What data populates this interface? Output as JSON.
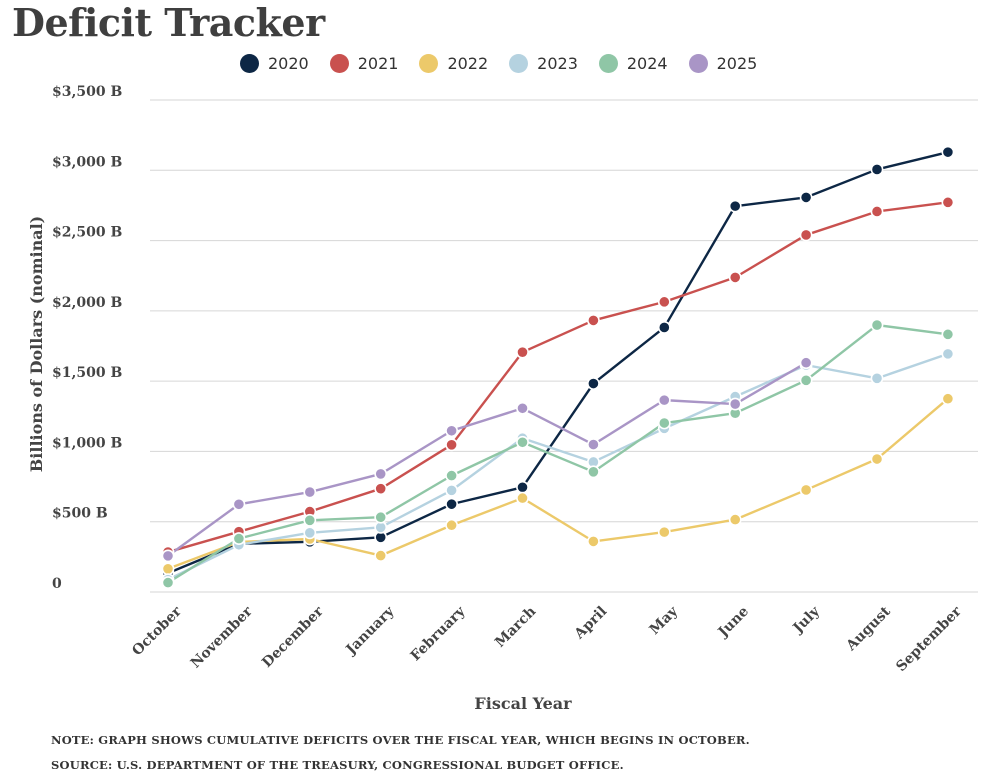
{
  "chart_data": {
    "type": "line",
    "title": "Deficit Tracker",
    "xlabel": "Fiscal Year",
    "ylabel": "Billions of Dollars (nominal)",
    "ylim": [
      0,
      3500
    ],
    "yticks": [
      0,
      500,
      1000,
      1500,
      2000,
      2500,
      3000,
      3500
    ],
    "ytick_labels": [
      "0",
      "$500 B",
      "$1,000 B",
      "$1,500 B",
      "$2,000 B",
      "$2,500 B",
      "$3,000 B",
      "$3,500 B"
    ],
    "grid": "horizontal",
    "legend_position": "top",
    "categories": [
      "October",
      "November",
      "December",
      "January",
      "February",
      "March",
      "April",
      "May",
      "June",
      "July",
      "August",
      "September"
    ],
    "series": [
      {
        "name": "2020",
        "color": "#0d2745",
        "values": [
          134,
          343,
          357,
          389,
          625,
          745,
          1483,
          1882,
          2745,
          2807,
          3006,
          3129
        ]
      },
      {
        "name": "2021",
        "color": "#c9514f",
        "values": [
          284,
          429,
          572,
          735,
          1047,
          1706,
          1932,
          2064,
          2238,
          2540,
          2707,
          2772
        ]
      },
      {
        "name": "2022",
        "color": "#ecc96a",
        "values": [
          165,
          356,
          377,
          259,
          475,
          668,
          360,
          426,
          515,
          726,
          946,
          1375
        ]
      },
      {
        "name": "2023",
        "color": "#b5d2e0",
        "values": [
          88,
          336,
          421,
          460,
          723,
          1094,
          925,
          1164,
          1390,
          1614,
          1520,
          1694
        ]
      },
      {
        "name": "2024",
        "color": "#8fc6a6",
        "values": [
          67,
          380,
          510,
          532,
          828,
          1065,
          855,
          1202,
          1272,
          1506,
          1899,
          1833
        ]
      },
      {
        "name": "2025",
        "color": "#a995c6",
        "values": [
          257,
          624,
          711,
          840,
          1147,
          1307,
          1049,
          1365,
          1337,
          1631,
          null,
          null
        ]
      }
    ]
  },
  "notes": {
    "note": "NOTE: GRAPH SHOWS CUMULATIVE DEFICITS OVER THE FISCAL YEAR, WHICH BEGINS IN OCTOBER.",
    "source": "SOURCE: U.S. DEPARTMENT OF THE TREASURY, CONGRESSIONAL BUDGET OFFICE."
  }
}
